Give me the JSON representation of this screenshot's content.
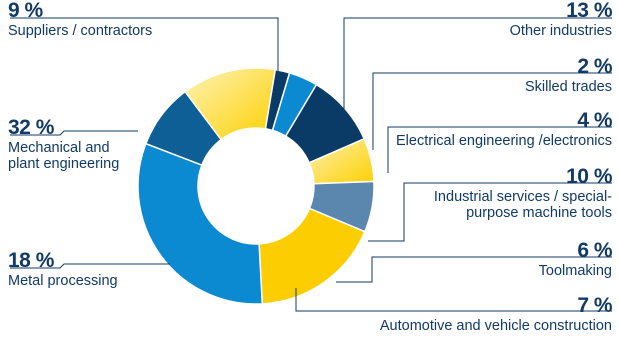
{
  "chart_data": {
    "type": "pie",
    "style": "donut",
    "slices": [
      {
        "percent": "9 %",
        "label": "Suppliers / contractors",
        "value": 9,
        "color": "#0e5f95"
      },
      {
        "percent": "13 %",
        "label": "Other industries",
        "value": 13,
        "color": "#ffe27a"
      },
      {
        "percent": "2 %",
        "label": "Skilled trades",
        "value": 2,
        "color": "#0a3a66"
      },
      {
        "percent": "4 %",
        "label": "Electrical engineering /electronics",
        "value": 4,
        "color": "#0b8ad1"
      },
      {
        "percent": "10 %",
        "label": "Industrial services / special-\npurpose machine tools",
        "value": 10,
        "color": "#0a3a66"
      },
      {
        "percent": "6 %",
        "label": "Toolmaking",
        "value": 6,
        "color": "#ffe27a"
      },
      {
        "percent": "7 %",
        "label": "Automotive and vehicle construction",
        "value": 7,
        "color": "#5b86ad"
      },
      {
        "percent": "18 %",
        "label": "Metal processing",
        "value": 18,
        "color": "#fccd00"
      },
      {
        "percent": "32 %",
        "label": "Mechanical and\nplant engineering",
        "value": 32,
        "color": "#0b8ad1"
      }
    ]
  }
}
